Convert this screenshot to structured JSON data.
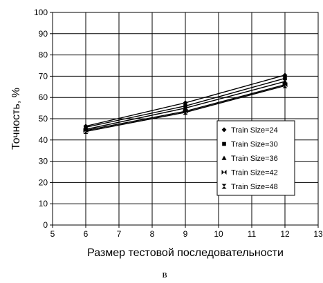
{
  "chart_data": {
    "type": "line",
    "xlabel": "Размер тестовой последовательности",
    "ylabel": "Точность, %",
    "caption": "в",
    "xlim": [
      5,
      13
    ],
    "ylim": [
      0,
      100
    ],
    "x_ticks": [
      "5",
      "6",
      "7",
      "8",
      "9",
      "10",
      "11",
      "12",
      "13"
    ],
    "y_ticks": [
      "0",
      "10",
      "20",
      "30",
      "40",
      "50",
      "60",
      "70",
      "80",
      "90",
      "100"
    ],
    "grid": true,
    "legend_position": "lower-right",
    "x": [
      6,
      9,
      12
    ],
    "series": [
      {
        "name": "Train Size=24",
        "marker": "diamond",
        "values": [
          46.5,
          57.5,
          70.5
        ]
      },
      {
        "name": "Train Size=30",
        "marker": "square",
        "values": [
          46.0,
          56.0,
          69.0
        ]
      },
      {
        "name": "Train Size=36",
        "marker": "triangle",
        "values": [
          45.0,
          55.0,
          67.5
        ]
      },
      {
        "name": "Train Size=42",
        "marker": "bowtie",
        "values": [
          44.5,
          53.5,
          66.0
        ]
      },
      {
        "name": "Train Size=48",
        "marker": "hourglass",
        "values": [
          44.0,
          53.0,
          65.5
        ]
      }
    ]
  }
}
